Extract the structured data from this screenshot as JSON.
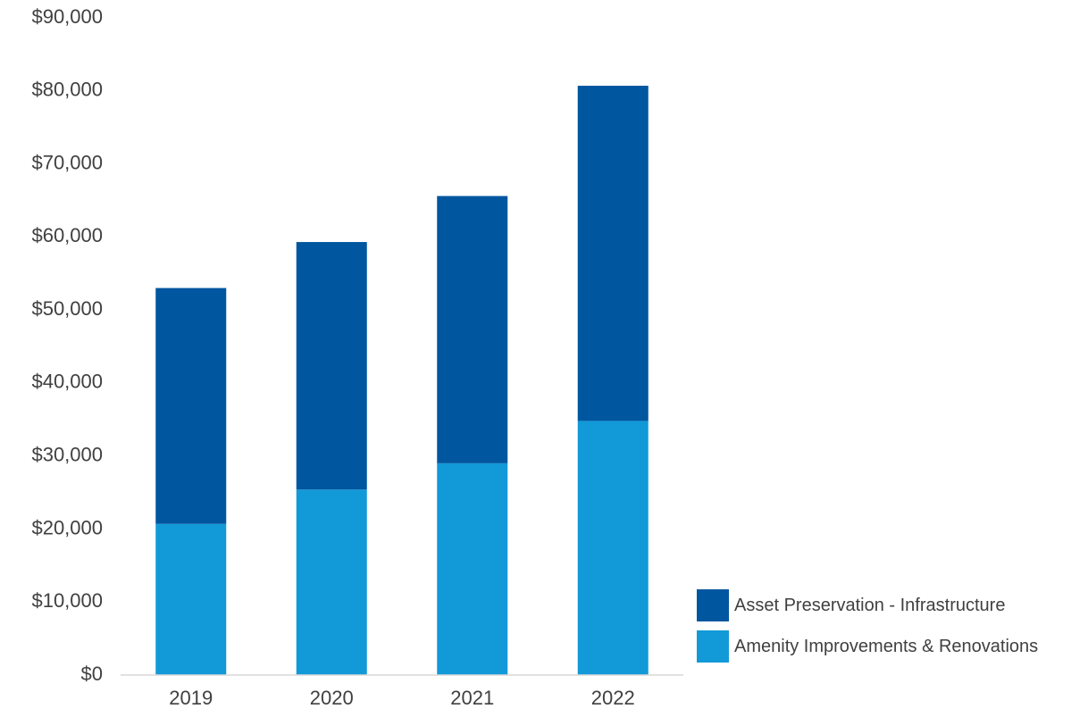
{
  "chart_data": {
    "type": "bar",
    "stacked": true,
    "categories": [
      "2019",
      "2020",
      "2021",
      "2022"
    ],
    "series": [
      {
        "name": "Amenity Improvements & Renovations",
        "color": "#1299d8",
        "values": [
          20700,
          25400,
          29000,
          34800
        ]
      },
      {
        "name": "Asset Preservation - Infrastructure",
        "color": "#00569f",
        "values": [
          32300,
          33900,
          36600,
          45900
        ]
      }
    ],
    "y_ticks": [
      "$0",
      "$10,000",
      "$20,000",
      "$30,000",
      "$40,000",
      "$50,000",
      "$60,000",
      "$70,000",
      "$80,000",
      "$90,000"
    ],
    "ylim": [
      0,
      90000
    ],
    "title": "",
    "xlabel": "",
    "ylabel": "",
    "legend": {
      "placement": "bottom-right",
      "items": [
        {
          "label": "Asset Preservation - Infrastructure",
          "color": "#00569f"
        },
        {
          "label": "Amenity Improvements & Renovations",
          "color": "#1299d8"
        }
      ]
    },
    "grid": false
  }
}
